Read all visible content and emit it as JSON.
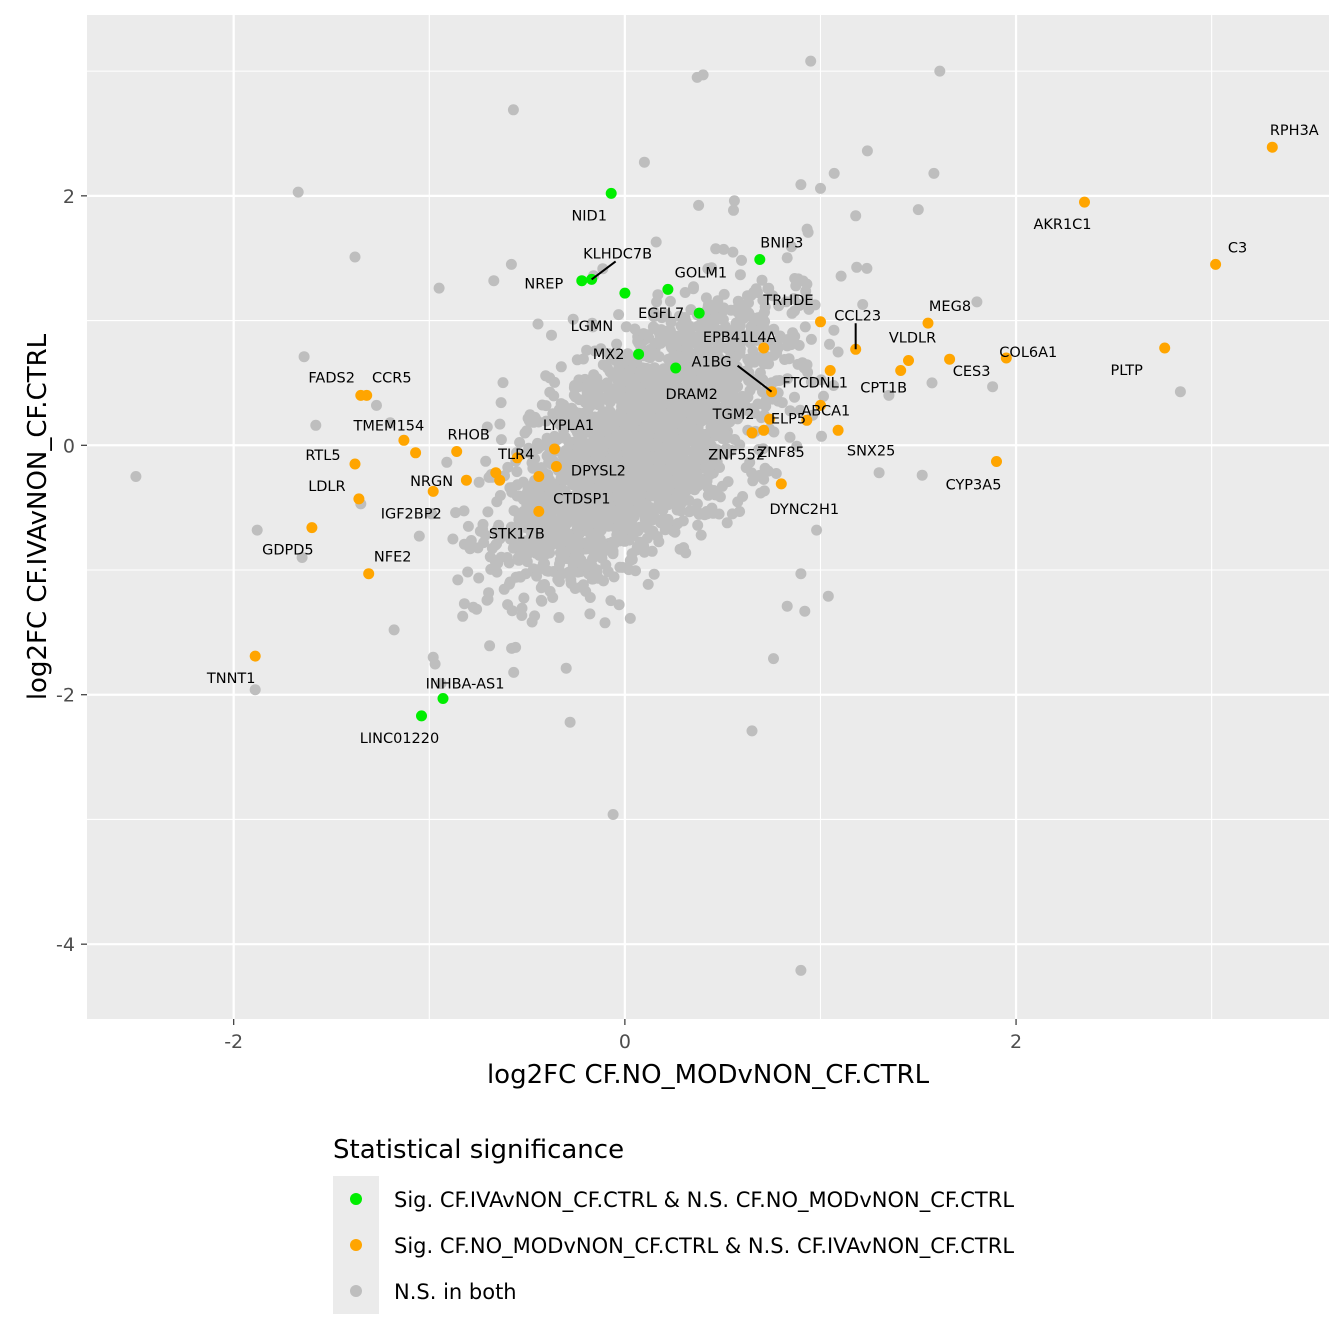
{
  "chart_data": {
    "type": "scatter",
    "xlabel": "log2FC CF.NO_MODvNON_CF.CTRL",
    "ylabel": "log2FC CF.IVAvNON_CF.CTRL",
    "xlim": [
      -2.75,
      3.6
    ],
    "ylim": [
      -4.6,
      3.45
    ],
    "xticks": [
      -2,
      0,
      2
    ],
    "yticks": [
      -4,
      -2,
      0,
      2
    ],
    "grid": true,
    "legend": {
      "title": "Statistical significance",
      "placement": "bottom",
      "entries": [
        {
          "label": "Sig. CF.IVAvNON_CF.CTRL & N.S. CF.NO_MODvNON_CF.CTRL",
          "color": "#00ee00"
        },
        {
          "label": "Sig. CF.NO_MODvNON_CF.CTRL & N.S. CF.IVAvNON_CF.CTRL",
          "color": "#ffa500"
        },
        {
          "label": "N.S. in both",
          "color": "#bebebe"
        }
      ]
    },
    "series": [
      {
        "name": "Sig. CF.IVAvNON_CF.CTRL & N.S. CF.NO_MODvNON_CF.CTRL",
        "color": "#00ee00",
        "points": [
          {
            "x": -0.07,
            "y": 2.02,
            "label": "NID1"
          },
          {
            "x": -0.22,
            "y": 1.32,
            "label": "NREP"
          },
          {
            "x": -0.17,
            "y": 1.33,
            "label": "KLHDC7B"
          },
          {
            "x": 0.0,
            "y": 1.22,
            "label": "LGMN"
          },
          {
            "x": 0.22,
            "y": 1.25,
            "label": "GOLM1"
          },
          {
            "x": 0.38,
            "y": 1.06,
            "label": "EGFL7"
          },
          {
            "x": 0.69,
            "y": 1.49,
            "label": "BNIP3"
          },
          {
            "x": 0.07,
            "y": 0.73,
            "label": "MX2"
          },
          {
            "x": 0.26,
            "y": 0.62,
            "label": "DRAM2"
          },
          {
            "x": -0.93,
            "y": -2.03,
            "label": "INHBA-AS1"
          },
          {
            "x": -1.04,
            "y": -2.17,
            "label": "LINC01220"
          }
        ]
      },
      {
        "name": "Sig. CF.NO_MODvNON_CF.CTRL & N.S. CF.IVAvNON_CF.CTRL",
        "color": "#ffa500",
        "points": [
          {
            "x": 3.31,
            "y": 2.39,
            "label": "RPH3A"
          },
          {
            "x": 2.35,
            "y": 1.95,
            "label": "AKR1C1"
          },
          {
            "x": 3.02,
            "y": 1.45,
            "label": "C3"
          },
          {
            "x": 2.76,
            "y": 0.78,
            "label": "PLTP"
          },
          {
            "x": 1.95,
            "y": 0.7,
            "label": "COL6A1"
          },
          {
            "x": 1.55,
            "y": 0.98,
            "label": "MEG8"
          },
          {
            "x": 1.66,
            "y": 0.69,
            "label": "CES3"
          },
          {
            "x": 1.45,
            "y": 0.68,
            "label": "VLDLR"
          },
          {
            "x": 1.41,
            "y": 0.6,
            "label": "CPT1B"
          },
          {
            "x": 1.18,
            "y": 0.77,
            "label": "CCL23"
          },
          {
            "x": 1.0,
            "y": 0.99,
            "label": "TRHDE"
          },
          {
            "x": 0.71,
            "y": 0.78,
            "label": "EPB41L4A"
          },
          {
            "x": 1.05,
            "y": 0.6,
            "label": "FTCDNL1"
          },
          {
            "x": 0.75,
            "y": 0.43,
            "label": "A1BG"
          },
          {
            "x": 1.0,
            "y": 0.32,
            "label": "ELP5"
          },
          {
            "x": 0.93,
            "y": 0.2,
            "label": "ABCA1"
          },
          {
            "x": 0.74,
            "y": 0.21,
            "label": "TGM2"
          },
          {
            "x": 0.71,
            "y": 0.12,
            "label": "ZNF552"
          },
          {
            "x": 0.65,
            "y": 0.1,
            "label": "ZNF85"
          },
          {
            "x": 1.09,
            "y": 0.12,
            "label": "SNX25"
          },
          {
            "x": 1.9,
            "y": -0.13,
            "label": "CYP3A5"
          },
          {
            "x": 0.8,
            "y": -0.31,
            "label": "DYNC2H1"
          },
          {
            "x": -1.32,
            "y": 0.4,
            "label": "FADS2"
          },
          {
            "x": -1.35,
            "y": 0.4,
            "label": "CCR5"
          },
          {
            "x": -1.13,
            "y": 0.04,
            "label": "TMEM154"
          },
          {
            "x": -1.38,
            "y": -0.15,
            "label": "RTL5"
          },
          {
            "x": -1.07,
            "y": -0.06,
            "label": "NRGN"
          },
          {
            "x": -0.86,
            "y": -0.05,
            "label": "RHOB"
          },
          {
            "x": -0.36,
            "y": -0.03,
            "label": "LYPLA1"
          },
          {
            "x": -0.35,
            "y": -0.17,
            "label": "DPYSL2"
          },
          {
            "x": -0.55,
            "y": -0.1,
            "label": "TLR4"
          },
          {
            "x": -0.44,
            "y": -0.25,
            "label": "CTDSP1"
          },
          {
            "x": -0.66,
            "y": -0.22,
            "label": ""
          },
          {
            "x": -0.64,
            "y": -0.28,
            "label": ""
          },
          {
            "x": -0.81,
            "y": -0.28,
            "label": ""
          },
          {
            "x": -0.98,
            "y": -0.37,
            "label": "IGF2BP2"
          },
          {
            "x": -1.36,
            "y": -0.43,
            "label": "LDLR"
          },
          {
            "x": -0.44,
            "y": -0.53,
            "label": "STK17B"
          },
          {
            "x": -1.6,
            "y": -0.66,
            "label": "GDPD5"
          },
          {
            "x": -1.31,
            "y": -1.03,
            "label": "NFE2"
          },
          {
            "x": -1.89,
            "y": -1.69,
            "label": "TNNT1"
          }
        ]
      },
      {
        "name": "N.S. in both",
        "color": "#bebebe",
        "points": [
          {
            "x": -2.5,
            "y": -0.25
          },
          {
            "x": -1.67,
            "y": 2.03
          },
          {
            "x": -1.38,
            "y": 1.51
          },
          {
            "x": -1.64,
            "y": 0.71
          },
          {
            "x": -0.57,
            "y": 2.69
          },
          {
            "x": 0.95,
            "y": 3.08
          },
          {
            "x": 0.4,
            "y": 2.97
          },
          {
            "x": 0.37,
            "y": 2.95
          },
          {
            "x": 1.61,
            "y": 3.0
          },
          {
            "x": 0.1,
            "y": 2.27
          },
          {
            "x": 1.24,
            "y": 2.36
          },
          {
            "x": 1.58,
            "y": 2.18
          },
          {
            "x": 1.07,
            "y": 2.18
          },
          {
            "x": 0.9,
            "y": 2.09
          },
          {
            "x": 1.0,
            "y": 2.06
          },
          {
            "x": 1.5,
            "y": 1.89
          },
          {
            "x": 1.18,
            "y": 1.84
          },
          {
            "x": -0.95,
            "y": 1.26
          },
          {
            "x": -0.16,
            "y": 1.36
          },
          {
            "x": 1.8,
            "y": 1.15
          },
          {
            "x": 2.84,
            "y": 0.43
          },
          {
            "x": 1.88,
            "y": 0.47
          },
          {
            "x": -1.88,
            "y": -0.68
          },
          {
            "x": -1.89,
            "y": -1.96
          },
          {
            "x": -0.06,
            "y": -2.96
          },
          {
            "x": 0.9,
            "y": -4.21
          },
          {
            "x": 0.65,
            "y": -2.29
          },
          {
            "x": -0.28,
            "y": -2.22
          },
          {
            "x": -0.94,
            "y": -1.91
          },
          {
            "x": -0.98,
            "y": -1.7
          },
          {
            "x": -1.18,
            "y": -1.48
          },
          {
            "x": 0.76,
            "y": -1.71
          },
          {
            "x": 1.04,
            "y": -1.21
          },
          {
            "x": -0.8,
            "y": -0.65
          },
          {
            "x": -0.5,
            "y": -0.88
          },
          {
            "x": 0.3,
            "y": -0.82
          },
          {
            "x": 0.55,
            "y": -0.55
          },
          {
            "x": 0.98,
            "y": -0.68
          },
          {
            "x": 1.3,
            "y": -0.22
          },
          {
            "x": 1.52,
            "y": -0.24
          },
          {
            "x": 1.57,
            "y": 0.5
          },
          {
            "x": 1.35,
            "y": 0.4
          },
          {
            "x": -1.2,
            "y": 0.18
          },
          {
            "x": -1.27,
            "y": 0.32
          },
          {
            "x": -0.58,
            "y": 1.45
          },
          {
            "x": -0.67,
            "y": 1.32
          },
          {
            "x": 0.16,
            "y": 1.63
          },
          {
            "x": 0.56,
            "y": 1.96
          },
          {
            "x": -1.58,
            "y": 0.16
          },
          {
            "x": -1.35,
            "y": -0.47
          },
          {
            "x": -1.65,
            "y": -0.9
          },
          {
            "x": 0.9,
            "y": -1.03
          },
          {
            "x": 0.92,
            "y": -1.33
          },
          {
            "x": 0.83,
            "y": -1.29
          }
        ]
      }
    ]
  }
}
